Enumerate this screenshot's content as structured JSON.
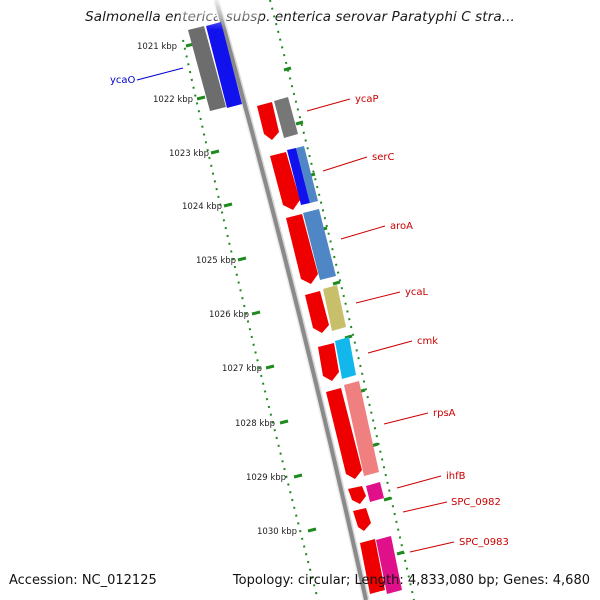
{
  "map": {
    "title": "Salmonella enterica subsp. enterica serovar Paratyphi C stra...",
    "accession_text": "Accession: NC_012125",
    "summary_text": "Topology: circular; Length: 4,833,080 bp; Genes: 4,680"
  },
  "kbp_labels": [
    "1021 kbp",
    "1022 kbp",
    "1023 kbp",
    "1024 kbp",
    "1025 kbp",
    "1026 kbp",
    "1027 kbp",
    "1028 kbp",
    "1029 kbp",
    "1030 kbp"
  ],
  "genes": [
    {
      "name": "ycaO",
      "color": "#0000cc"
    },
    {
      "name": "ycaP",
      "color": "#cc0000"
    },
    {
      "name": "serC",
      "color": "#cc0000"
    },
    {
      "name": "aroA",
      "color": "#cc0000"
    },
    {
      "name": "ycaL",
      "color": "#cc0000"
    },
    {
      "name": "cmk",
      "color": "#cc0000"
    },
    {
      "name": "rpsA",
      "color": "#cc0000"
    },
    {
      "name": "ihfB",
      "color": "#cc0000"
    },
    {
      "name": "SPC_0982",
      "color": "#cc0000"
    },
    {
      "name": "SPC_0983",
      "color": "#cc0000"
    }
  ],
  "colors": {
    "backbone": "#8a8a8a",
    "tick_green": "#1f8a1f",
    "cds_red": "#ee0000",
    "blast_grey": "#777777",
    "blast_blue": "#1111ee",
    "blast_steel": "#4f86c6",
    "blast_khaki": "#c8bf6a",
    "blast_cyan": "#12b8ec",
    "blast_salmon": "#f08080",
    "blast_magenta": "#e0108a"
  }
}
